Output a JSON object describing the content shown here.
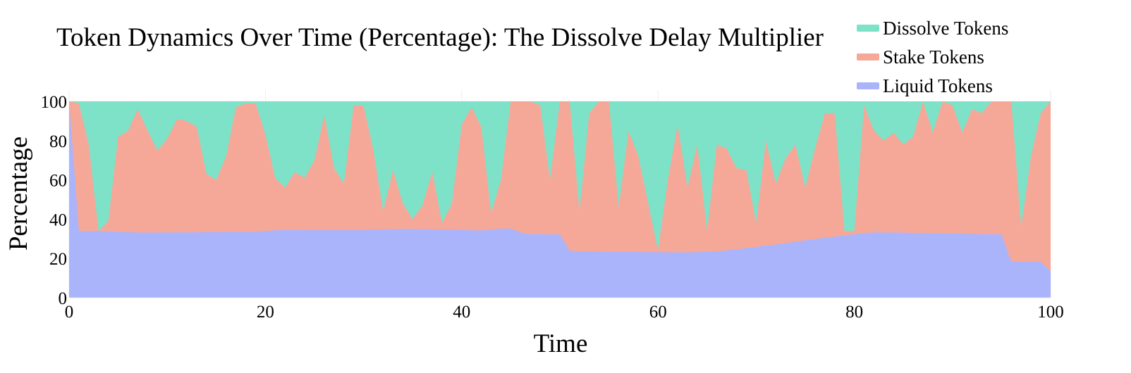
{
  "chart_data": {
    "type": "area",
    "stacking": "percent",
    "title": "Token Dynamics Over Time (Percentage): The Dissolve Delay Multiplier",
    "xlabel": "Time",
    "ylabel": "Percentage",
    "xlim": [
      0,
      100
    ],
    "ylim": [
      0,
      100
    ],
    "x_ticks": [
      0,
      20,
      40,
      60,
      80,
      100
    ],
    "y_ticks": [
      0,
      20,
      40,
      60,
      80,
      100
    ],
    "grid": true,
    "legend_position": "top-right",
    "x": [
      0,
      1,
      2,
      3,
      4,
      5,
      6,
      7,
      8,
      9,
      10,
      11,
      12,
      13,
      14,
      15,
      16,
      17,
      18,
      19,
      20,
      21,
      22,
      23,
      24,
      25,
      26,
      27,
      28,
      29,
      30,
      31,
      32,
      33,
      34,
      35,
      36,
      37,
      38,
      39,
      40,
      41,
      42,
      43,
      44,
      45,
      46,
      47,
      48,
      49,
      50,
      51,
      52,
      53,
      54,
      55,
      56,
      57,
      58,
      59,
      60,
      61,
      62,
      63,
      64,
      65,
      66,
      67,
      68,
      69,
      70,
      71,
      72,
      73,
      74,
      75,
      76,
      77,
      78,
      79,
      80,
      81,
      82,
      83,
      84,
      85,
      86,
      87,
      88,
      89,
      90,
      91,
      92,
      93,
      94,
      95,
      96,
      97,
      98,
      99,
      100
    ],
    "series": [
      {
        "name": "Liquid Tokens",
        "color": "#aab4fb",
        "cumulative_top": [
          100,
          34,
          34,
          34,
          33.8,
          33.6,
          33.4,
          33.2,
          33.2,
          33.2,
          33.2,
          33.3,
          33.3,
          33.3,
          33.4,
          33.5,
          33.6,
          33.6,
          33.5,
          33.6,
          34,
          34.3,
          34.6,
          34.6,
          34.5,
          34.5,
          34.5,
          34.5,
          34.5,
          34.5,
          34.5,
          34.7,
          34.8,
          34.9,
          35,
          35,
          35,
          34.8,
          34.7,
          34.6,
          34.6,
          34.3,
          34.3,
          34.7,
          35.2,
          35.2,
          33.2,
          32.4,
          32.4,
          32.3,
          32.3,
          24,
          23.6,
          23.6,
          23.5,
          23.5,
          23.4,
          23.3,
          23.3,
          23.2,
          23.2,
          23.1,
          23.1,
          23.1,
          23.2,
          23.4,
          23.7,
          24.1,
          24.7,
          25.3,
          25.9,
          26.5,
          27.1,
          27.8,
          28.5,
          29.2,
          29.9,
          30.5,
          31.1,
          31.7,
          32.3,
          32.9,
          33.3,
          33.2,
          33.2,
          33.1,
          33,
          32.9,
          32.8,
          32.8,
          32.7,
          32.6,
          32.5,
          32.4,
          32.3,
          32.3,
          18.3,
          18.3,
          18.3,
          18.2,
          13.5
        ]
      },
      {
        "name": "Stake Tokens",
        "color": "#f6a898",
        "cumulative_top": [
          100,
          99,
          78,
          34,
          39,
          82,
          85,
          96,
          85,
          75,
          81,
          91,
          90,
          87,
          63,
          60,
          72,
          97,
          99,
          99,
          83,
          61,
          56,
          64,
          61,
          70,
          93,
          66,
          58,
          98,
          98,
          75,
          44,
          65,
          48,
          40,
          47,
          64,
          38,
          48,
          88,
          97,
          87,
          43,
          60,
          100,
          100,
          100,
          98,
          60,
          100,
          100,
          44,
          94,
          100,
          100,
          46,
          85,
          72,
          48,
          24,
          60,
          88,
          56,
          78,
          34,
          78,
          76,
          66,
          65,
          38,
          80,
          58,
          71,
          78,
          56,
          76,
          94,
          94,
          34,
          34,
          98,
          85,
          80,
          84,
          78,
          82,
          100,
          84,
          100,
          98,
          84,
          96,
          94,
          100,
          100,
          100,
          36,
          72,
          94,
          100
        ]
      },
      {
        "name": "Dissolve Tokens",
        "color": "#7de2c8",
        "cumulative_top": [
          100,
          100,
          100,
          100,
          100,
          100,
          100,
          100,
          100,
          100,
          100,
          100,
          100,
          100,
          100,
          100,
          100,
          100,
          100,
          100,
          100,
          100,
          100,
          100,
          100,
          100,
          100,
          100,
          100,
          100,
          100,
          100,
          100,
          100,
          100,
          100,
          100,
          100,
          100,
          100,
          100,
          100,
          100,
          100,
          100,
          100,
          100,
          100,
          100,
          100,
          100,
          100,
          100,
          100,
          100,
          100,
          100,
          100,
          100,
          100,
          100,
          100,
          100,
          100,
          100,
          100,
          100,
          100,
          100,
          100,
          100,
          100,
          100,
          100,
          100,
          100,
          100,
          100,
          100,
          100,
          100,
          100,
          100,
          100,
          100,
          100,
          100,
          100,
          100,
          100,
          100,
          100,
          100,
          100,
          100,
          100,
          100,
          100,
          100,
          100,
          100
        ]
      }
    ],
    "legend_order": [
      "Dissolve Tokens",
      "Stake Tokens",
      "Liquid Tokens"
    ]
  }
}
